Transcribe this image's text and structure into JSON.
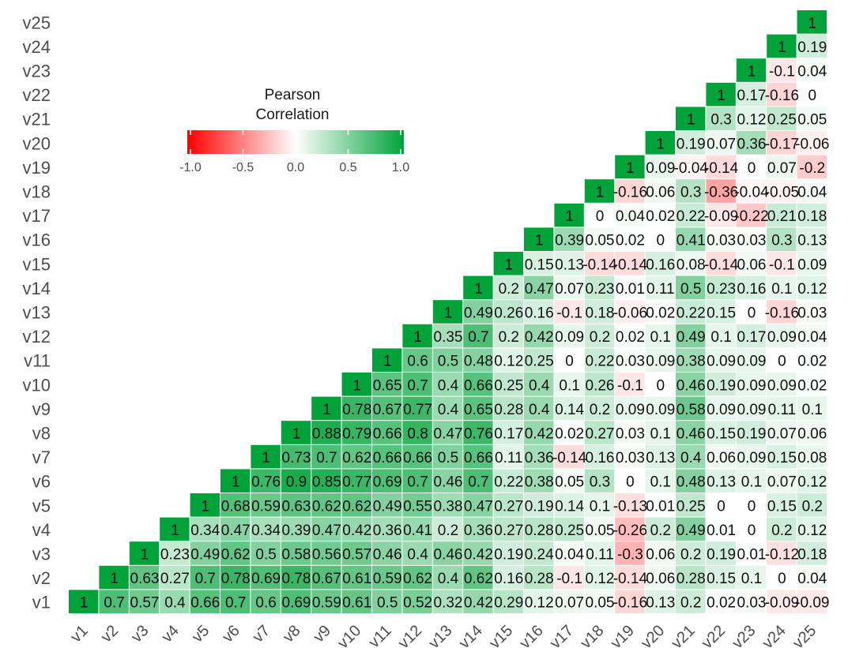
{
  "chart_data": {
    "type": "heatmap",
    "variables": [
      "v1",
      "v2",
      "v3",
      "v4",
      "v5",
      "v6",
      "v7",
      "v8",
      "v9",
      "v10",
      "v11",
      "v12",
      "v13",
      "v14",
      "v15",
      "v16",
      "v17",
      "v18",
      "v19",
      "v20",
      "v21",
      "v22",
      "v23",
      "v24",
      "v25"
    ],
    "upper_triangle": [
      [
        1,
        0.7,
        0.57,
        0.4,
        0.66,
        0.7,
        0.6,
        0.69,
        0.59,
        0.61,
        0.5,
        0.52,
        0.32,
        0.42,
        0.29,
        0.12,
        0.07,
        0.05,
        -0.16,
        0.13,
        0.2,
        0.02,
        0.03,
        -0.09,
        -0.09
      ],
      [
        1,
        0.63,
        0.27,
        0.7,
        0.78,
        0.69,
        0.78,
        0.67,
        0.61,
        0.59,
        0.62,
        0.4,
        0.62,
        0.16,
        0.28,
        -0.1,
        0.12,
        -0.14,
        0.06,
        0.28,
        0.15,
        0.1,
        0.0,
        0.04
      ],
      [
        1,
        0.23,
        0.49,
        0.62,
        0.5,
        0.58,
        0.56,
        0.57,
        0.46,
        0.4,
        0.46,
        0.42,
        0.19,
        0.24,
        0.04,
        0.11,
        -0.3,
        0.06,
        0.2,
        0.19,
        0.01,
        -0.12,
        0.18
      ],
      [
        1,
        0.34,
        0.47,
        0.34,
        0.39,
        0.47,
        0.42,
        0.36,
        0.41,
        0.2,
        0.36,
        0.27,
        0.28,
        0.25,
        0.05,
        -0.26,
        0.2,
        0.49,
        0.01,
        0.0,
        0.2,
        0.12
      ],
      [
        1,
        0.68,
        0.59,
        0.63,
        0.62,
        0.62,
        0.49,
        0.55,
        0.38,
        0.47,
        0.27,
        0.19,
        0.14,
        0.1,
        -0.13,
        0.01,
        0.25,
        0.0,
        0.0,
        0.15,
        0.2
      ],
      [
        1,
        0.76,
        0.9,
        0.85,
        0.77,
        0.69,
        0.7,
        0.46,
        0.7,
        0.22,
        0.38,
        0.05,
        0.3,
        0.0,
        0.1,
        0.48,
        0.13,
        0.1,
        0.07,
        0.12
      ],
      [
        1,
        0.73,
        0.7,
        0.62,
        0.66,
        0.66,
        0.5,
        0.66,
        0.11,
        0.36,
        -0.14,
        0.16,
        0.03,
        0.13,
        0.4,
        0.06,
        0.09,
        0.15,
        0.08
      ],
      [
        1,
        0.88,
        0.79,
        0.66,
        0.8,
        0.47,
        0.76,
        0.17,
        0.42,
        0.02,
        0.27,
        0.03,
        0.1,
        0.46,
        0.15,
        0.19,
        0.07,
        0.06
      ],
      [
        1,
        0.78,
        0.67,
        0.77,
        0.4,
        0.65,
        0.28,
        0.4,
        0.14,
        0.2,
        0.09,
        0.09,
        0.58,
        0.09,
        0.09,
        0.11,
        0.1
      ],
      [
        1,
        0.65,
        0.7,
        0.4,
        0.66,
        0.25,
        0.4,
        0.1,
        0.26,
        -0.1,
        0.0,
        0.46,
        0.19,
        0.09,
        0.09,
        0.02
      ],
      [
        1,
        0.6,
        0.5,
        0.48,
        0.12,
        0.25,
        0.0,
        0.22,
        0.03,
        0.09,
        0.38,
        0.09,
        0.09,
        0.0,
        0.02
      ],
      [
        1,
        0.35,
        0.7,
        0.2,
        0.42,
        0.09,
        0.2,
        0.02,
        0.1,
        0.49,
        0.1,
        0.17,
        0.09,
        0.04
      ],
      [
        1,
        0.49,
        0.26,
        0.16,
        -0.1,
        0.18,
        -0.06,
        0.02,
        0.22,
        0.15,
        0.0,
        -0.16,
        0.03
      ],
      [
        1,
        0.2,
        0.47,
        0.07,
        0.23,
        0.01,
        0.11,
        0.5,
        0.23,
        0.16,
        0.1,
        0.12
      ],
      [
        1,
        0.15,
        0.13,
        -0.14,
        -0.14,
        0.16,
        0.08,
        -0.14,
        0.06,
        -0.1,
        0.09
      ],
      [
        1,
        0.39,
        0.05,
        0.02,
        0.0,
        0.41,
        0.03,
        0.03,
        0.3,
        0.13
      ],
      [
        1,
        0.0,
        0.04,
        0.02,
        0.22,
        -0.09,
        -0.22,
        0.21,
        0.18
      ],
      [
        1,
        -0.16,
        0.06,
        0.3,
        -0.36,
        -0.04,
        -0.05,
        0.04
      ],
      [
        1,
        0.09,
        -0.04,
        -0.14,
        0.0,
        0.07,
        -0.2
      ],
      [
        1,
        0.19,
        0.07,
        0.36,
        -0.17,
        -0.06
      ],
      [
        1,
        0.3,
        0.12,
        0.25,
        0.05
      ],
      [
        1,
        0.17,
        -0.16,
        0
      ],
      [
        1,
        -0.1,
        0.04
      ],
      [
        1,
        0.19
      ],
      [
        1
      ]
    ],
    "legend": {
      "title_line1": "Pearson",
      "title_line2": "Correlation",
      "ticks": [
        "-1.0",
        "-0.5",
        "0.0",
        "0.5",
        "1.0"
      ],
      "tick_values": [
        -1.0,
        -0.5,
        0.0,
        0.5,
        1.0
      ],
      "limits": [
        -1,
        1
      ]
    },
    "colors": {
      "low": "#ff0000",
      "mid": "#ffffff",
      "high": "#00a23a"
    }
  }
}
